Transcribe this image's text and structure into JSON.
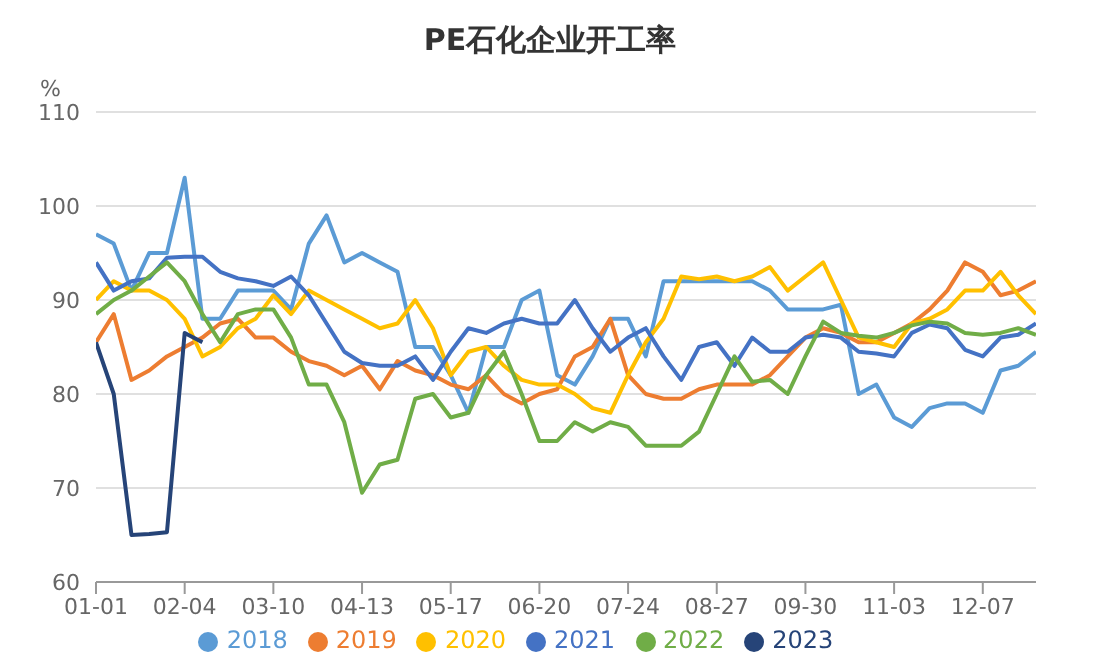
{
  "chart_data": {
    "type": "line",
    "title": "PE石化企业开工率",
    "ylabel": "%",
    "categories": [
      "01-01",
      null,
      null,
      null,
      null,
      "02-04",
      null,
      null,
      null,
      null,
      "03-10",
      null,
      null,
      null,
      null,
      "04-13",
      null,
      null,
      null,
      null,
      "05-17",
      null,
      null,
      null,
      null,
      "06-20",
      null,
      null,
      null,
      null,
      "07-24",
      null,
      null,
      null,
      null,
      "08-27",
      null,
      null,
      null,
      null,
      "09-30",
      null,
      null,
      null,
      null,
      "11-03",
      null,
      null,
      null,
      null,
      "12-07",
      null,
      null,
      null
    ],
    "ylim": [
      60,
      110
    ],
    "yticks": [
      60,
      70,
      80,
      90,
      100,
      110
    ],
    "grid": "y",
    "legend": "bottom",
    "marker": "none",
    "line_style": "solid",
    "series": [
      {
        "name": "2018",
        "color": "#5b9bd5",
        "values": [
          97,
          96,
          91,
          95,
          95,
          103,
          88,
          88,
          91,
          91,
          91,
          89,
          96,
          99,
          94,
          95,
          94,
          93,
          85,
          85,
          82,
          78,
          85,
          85,
          90,
          91,
          82,
          81,
          84,
          88,
          88,
          84,
          92,
          92,
          92,
          92,
          92,
          92,
          91,
          89,
          89,
          89,
          89.5,
          80,
          81,
          77.5,
          76.5,
          78.5,
          79,
          79,
          78,
          82.5,
          83,
          84.5
        ]
      },
      {
        "name": "2019",
        "color": "#ed7d31",
        "values": [
          85.5,
          88.5,
          81.5,
          82.5,
          84,
          85,
          86,
          87.5,
          88,
          86,
          86,
          84.5,
          83.5,
          83,
          82,
          83,
          80.5,
          83.5,
          82.5,
          82,
          81,
          80.5,
          82,
          80,
          79,
          80,
          80.5,
          84,
          85,
          88,
          82,
          80,
          79.5,
          79.5,
          80.5,
          81,
          81,
          81,
          82,
          84,
          86,
          87,
          86.5,
          85.5,
          85.5,
          86.5,
          87.5,
          89,
          91,
          94,
          93,
          90.5,
          91,
          92
        ]
      },
      {
        "name": "2020",
        "color": "#ffc000",
        "values": [
          90,
          92,
          91,
          91,
          90,
          88,
          84,
          85,
          87,
          88,
          90.5,
          88.5,
          91,
          90,
          89,
          88,
          87,
          87.5,
          90,
          87,
          82,
          84.5,
          85,
          83,
          81.5,
          81,
          81,
          80,
          78.5,
          78,
          82,
          85.5,
          88,
          92.5,
          92.2,
          92.5,
          92,
          92.5,
          93.5,
          91,
          92.5,
          94,
          90,
          86,
          85.5,
          85,
          87.5,
          88,
          89,
          91,
          91,
          93,
          90.5,
          88.5
        ]
      },
      {
        "name": "2021",
        "color": "#4472c4",
        "values": [
          94,
          91,
          92,
          92.3,
          94.5,
          94.6,
          94.6,
          93,
          92.3,
          92,
          91.5,
          92.5,
          90.5,
          87.5,
          84.5,
          83.3,
          83,
          83,
          84,
          81.5,
          84.5,
          87,
          86.5,
          87.5,
          88,
          87.5,
          87.5,
          90,
          87,
          84.5,
          86,
          87,
          84,
          81.5,
          85,
          85.5,
          83,
          86,
          84.5,
          84.5,
          86,
          86.3,
          86,
          84.5,
          84.3,
          84,
          86.5,
          87.4,
          87,
          84.7,
          84,
          86,
          86.3,
          87.5
        ]
      },
      {
        "name": "2022",
        "color": "#70ad47",
        "values": [
          88.5,
          90,
          91,
          92.5,
          94,
          92,
          88.5,
          85.5,
          88.5,
          89,
          89,
          86,
          81,
          81,
          77,
          69.5,
          72.5,
          73,
          79.5,
          80,
          77.5,
          78,
          82,
          84.5,
          80,
          75,
          75,
          77,
          76,
          77,
          76.5,
          74.5,
          74.5,
          74.5,
          76,
          80,
          84,
          81.3,
          81.5,
          80,
          84,
          87.7,
          86.5,
          86.2,
          86,
          86.5,
          87.3,
          87.7,
          87.5,
          86.5,
          86.3,
          86.5,
          87,
          86.3
        ]
      },
      {
        "name": "2023",
        "color": "#264478",
        "values": [
          85.5,
          80,
          65,
          65.1,
          65.3,
          86.5,
          85.5,
          null,
          null,
          null,
          null,
          null,
          null,
          null,
          null,
          null,
          null,
          null,
          null,
          null,
          null,
          null,
          null,
          null,
          null,
          null,
          null,
          null,
          null,
          null,
          null,
          null,
          null,
          null,
          null,
          null,
          null,
          null,
          null,
          null,
          null,
          null,
          null,
          null,
          null,
          null,
          null,
          null,
          null,
          null,
          null,
          null,
          null,
          null
        ]
      }
    ]
  }
}
